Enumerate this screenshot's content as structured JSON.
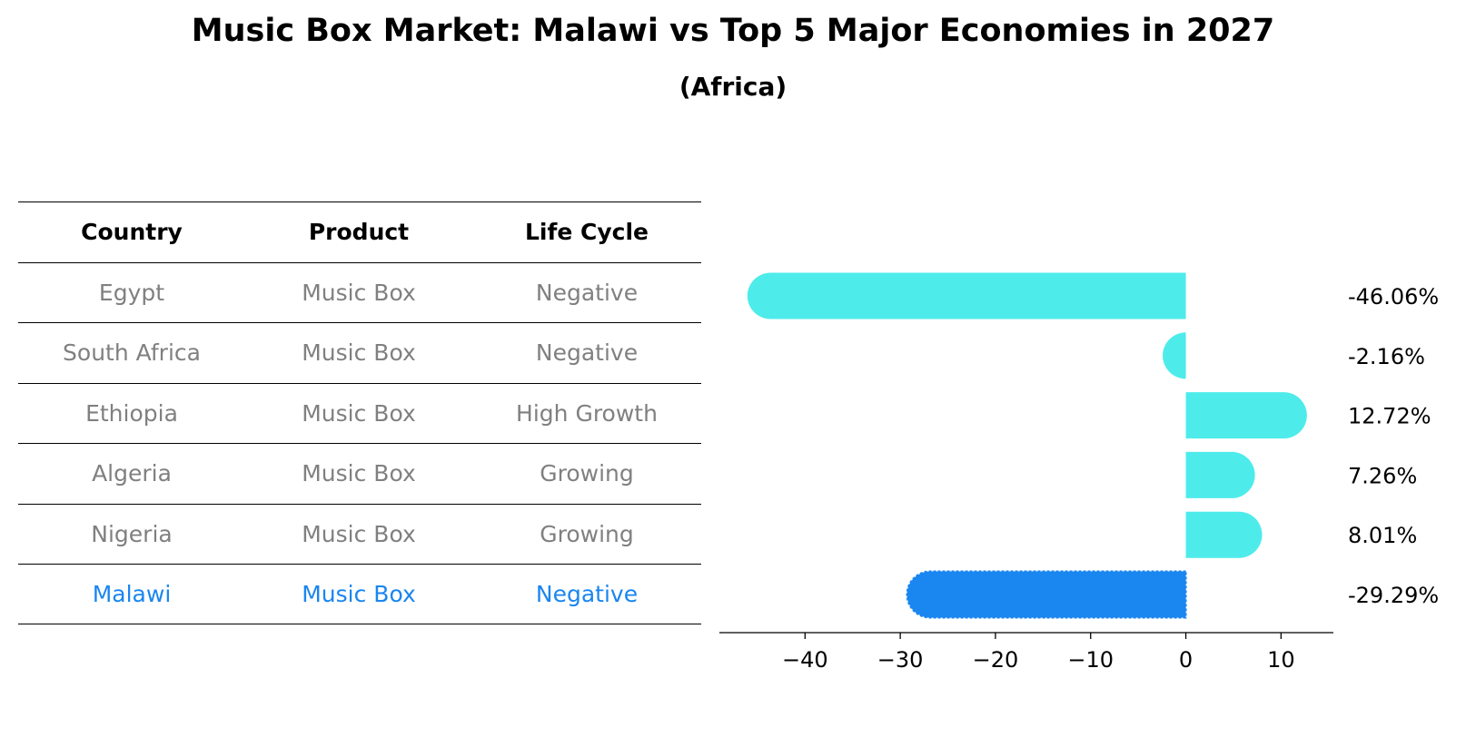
{
  "title": "Music Box Market: Malawi vs Top 5 Major Economies in 2027",
  "subtitle": "(Africa)",
  "table": {
    "headers": [
      "Country",
      "Product",
      "Life Cycle"
    ],
    "rows": [
      [
        "Egypt",
        "Music Box",
        "Negative"
      ],
      [
        "South Africa",
        "Music Box",
        "Negative"
      ],
      [
        "Ethiopia",
        "Music Box",
        "High Growth"
      ],
      [
        "Algeria",
        "Music Box",
        "Growing"
      ],
      [
        "Nigeria",
        "Music Box",
        "Growing"
      ],
      [
        "Malawi",
        "Music Box",
        "Negative"
      ]
    ]
  },
  "colors": {
    "bar": "#4deceb",
    "highlight": "#1a86f0",
    "muted_text": "#808080"
  },
  "chart_data": {
    "type": "bar",
    "orientation": "horizontal",
    "categories": [
      "Egypt",
      "South Africa",
      "Ethiopia",
      "Algeria",
      "Nigeria",
      "Malawi"
    ],
    "values": [
      -46.06,
      -2.16,
      12.72,
      7.26,
      8.01,
      -29.29
    ],
    "value_labels": [
      "-46.06%",
      "-2.16%",
      "12.72%",
      "7.26%",
      "8.01%",
      "-29.29%"
    ],
    "highlight": "Malawi",
    "xlim": [
      -49,
      15.5
    ],
    "xticks": [
      -40,
      -30,
      -20,
      -10,
      0,
      10
    ],
    "xtick_labels": [
      "−40",
      "−30",
      "−20",
      "−10",
      "0",
      "10"
    ],
    "grid": false
  }
}
